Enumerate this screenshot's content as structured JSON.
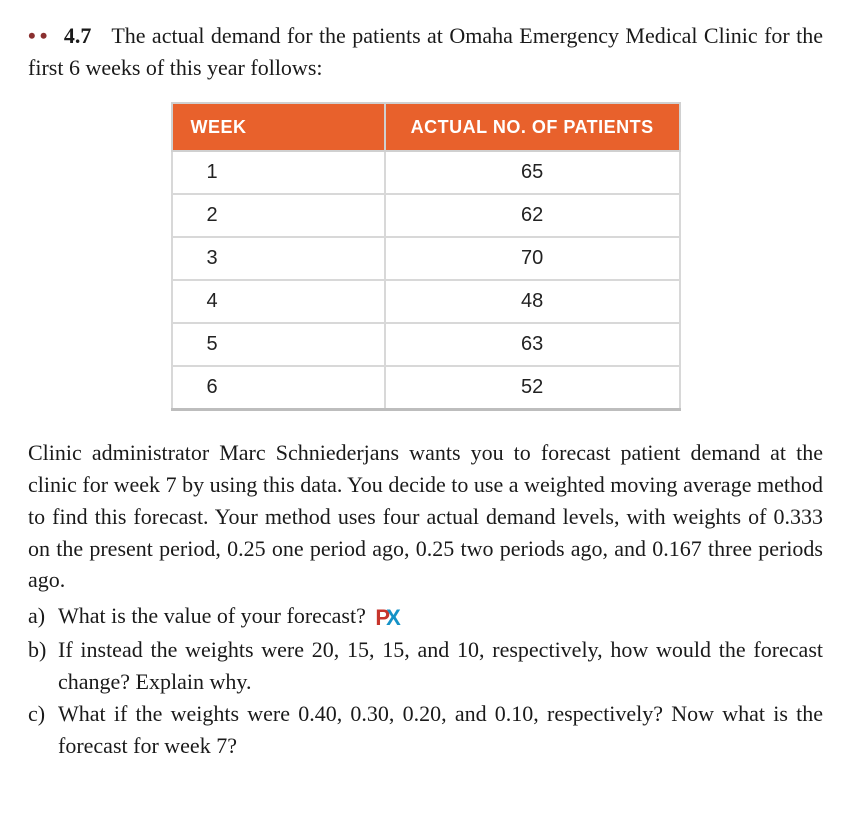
{
  "problem": {
    "dots": "••",
    "number": "4.7",
    "intro": "The actual demand for the patients at Omaha Emergency Medical Clinic for the first 6 weeks of this year follows:"
  },
  "table": {
    "header_bg": "#e8612c",
    "header_fg": "#ffffff",
    "border_color": "#d8d8d8",
    "columns": [
      "WEEK",
      "ACTUAL NO. OF PATIENTS"
    ],
    "rows": [
      [
        "1",
        "65"
      ],
      [
        "2",
        "62"
      ],
      [
        "3",
        "70"
      ],
      [
        "4",
        "48"
      ],
      [
        "5",
        "63"
      ],
      [
        "6",
        "52"
      ]
    ]
  },
  "middle": "Clinic administrator Marc Schniederjans wants you to forecast patient demand at the clinic for week 7 by using this data. You decide to use a weighted moving average method to find this forecast. Your method uses four actual demand levels, with weights of 0.333 on the present period, 0.25 one period ago, 0.25 two periods ago, and 0.167 three periods ago.",
  "parts": {
    "a": {
      "tag": "a)",
      "text": "What is the value of your forecast?"
    },
    "b": {
      "tag": "b)",
      "text": "If instead the weights were 20, 15, 15, and 10, respectively, how would the forecast change? Explain why."
    },
    "c": {
      "tag": "c)",
      "text": "What if the weights were 0.40, 0.30, 0.20, and 0.10, respectively? Now what is the forecast for week 7?"
    }
  },
  "badge": {
    "p": "P",
    "x": "X"
  },
  "colors": {
    "dots": "#8a2f2f",
    "badge_p": "#c7352c",
    "badge_x": "#1592c7"
  }
}
